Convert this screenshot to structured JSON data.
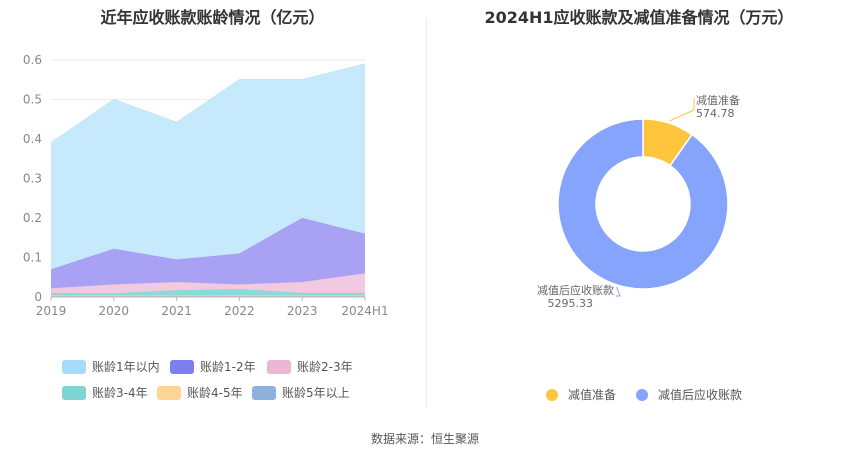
{
  "left_chart": {
    "title": "近年应收账款账龄情况（亿元）",
    "chart_data": {
      "type": "area",
      "stacked": true,
      "x": [
        "2019",
        "2020",
        "2021",
        "2022",
        "2023",
        "2024H1"
      ],
      "ylim": [
        0,
        0.6
      ],
      "yticks": [
        "0",
        "0.1",
        "0.2",
        "0.3",
        "0.4",
        "0.5",
        "0.6"
      ],
      "grid": true,
      "legend_position": "bottom",
      "series": [
        {
          "name": "账龄5年以上",
          "color": "#8fb1e0",
          "values": [
            0.002,
            0.002,
            0.002,
            0.002,
            0.002,
            0.002
          ]
        },
        {
          "name": "账龄4-5年",
          "color": "#ffd494",
          "values": [
            0.002,
            0.002,
            0.002,
            0.002,
            0.002,
            0.002
          ]
        },
        {
          "name": "账龄3-4年",
          "color": "#85d8d8",
          "values": [
            0.006,
            0.005,
            0.013,
            0.016,
            0.006,
            0.006
          ]
        },
        {
          "name": "账龄2-3年",
          "color": "#f0c6de",
          "values": [
            0.012,
            0.023,
            0.021,
            0.012,
            0.028,
            0.05
          ]
        },
        {
          "name": "账龄1-2年",
          "color": "#a39cf3",
          "values": [
            0.048,
            0.09,
            0.057,
            0.078,
            0.162,
            0.1
          ]
        },
        {
          "name": "账龄1年以内",
          "color": "#c3e8fb",
          "values": [
            0.32,
            0.378,
            0.347,
            0.44,
            0.35,
            0.43
          ]
        }
      ]
    },
    "legend": [
      {
        "label": "账龄1年以内",
        "color": "#a6dcf7"
      },
      {
        "label": "账龄1-2年",
        "color": "#7b7ff0"
      },
      {
        "label": "账龄2-3年",
        "color": "#eab7d6"
      },
      {
        "label": "账龄3-4年",
        "color": "#80d4d4"
      },
      {
        "label": "账龄4-5年",
        "color": "#ffd494"
      },
      {
        "label": "账龄5年以上",
        "color": "#8fb1e0"
      }
    ]
  },
  "right_chart": {
    "title": "2024H1应收账款及减值准备情况（万元）",
    "chart_data": {
      "type": "pie",
      "donut": true,
      "slices": [
        {
          "name": "减值准备",
          "value": 574.78,
          "label": "574.78",
          "color": "#ffc53d"
        },
        {
          "name": "减值后应收账款",
          "value": 5295.33,
          "label": "5295.33",
          "color": "#86a4fb"
        }
      ]
    },
    "legend": [
      {
        "label": "减值准备",
        "color": "#ffc53d"
      },
      {
        "label": "减值后应收账款",
        "color": "#86a4fb"
      }
    ]
  },
  "footer": {
    "source": "数据来源：恒生聚源"
  }
}
